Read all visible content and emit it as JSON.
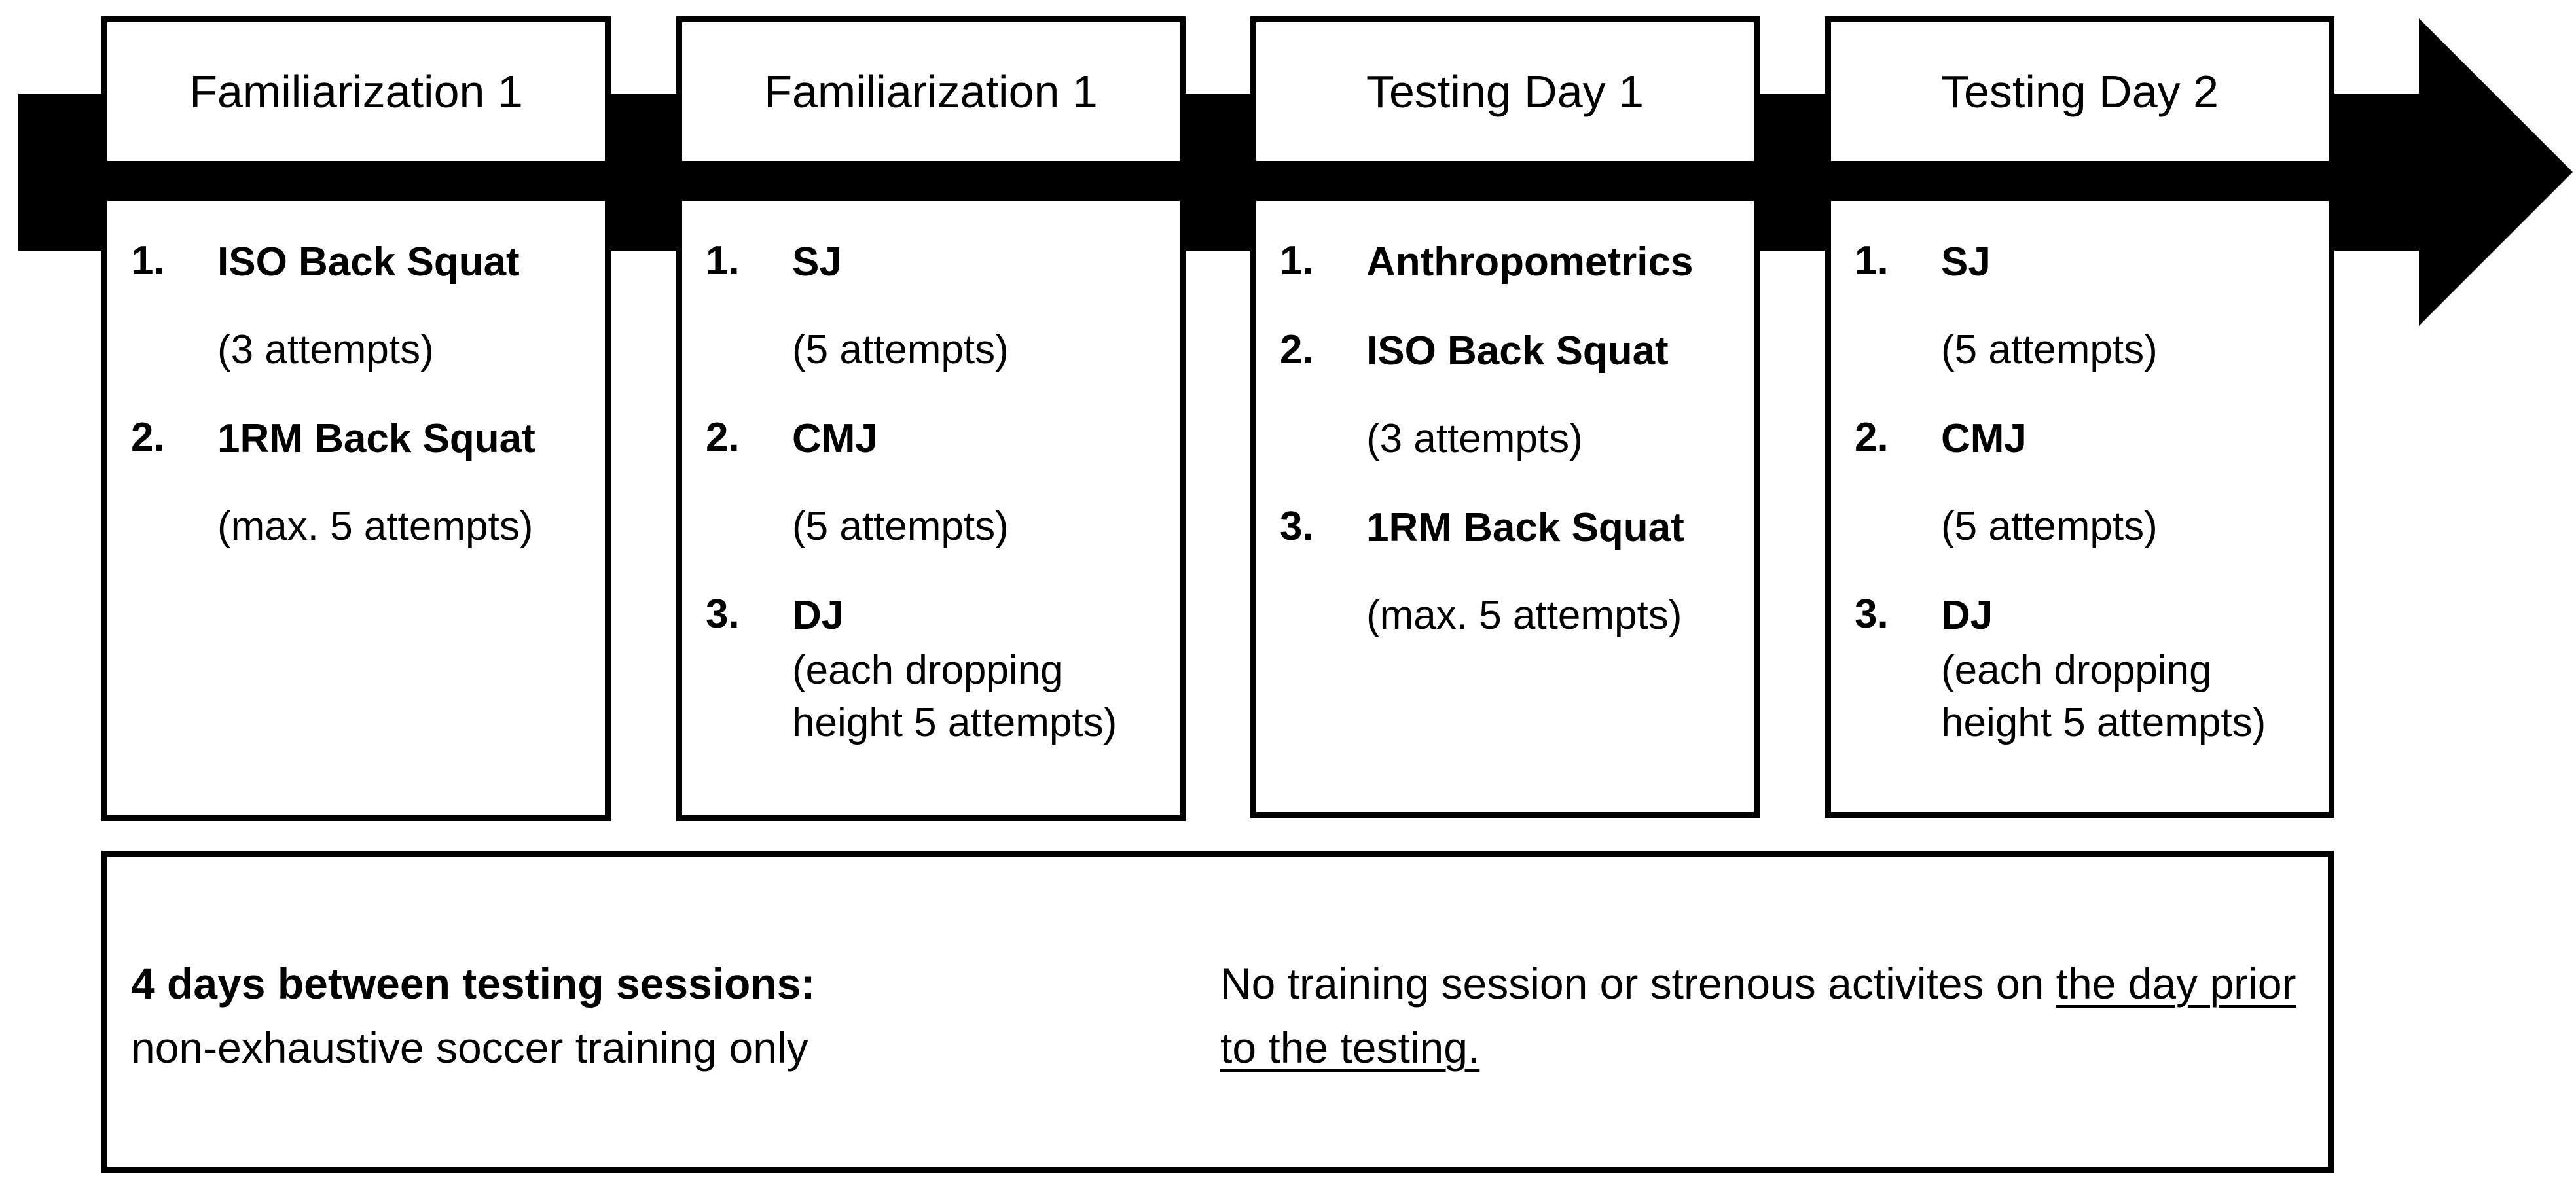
{
  "sessions": [
    {
      "title": "Familiarization 1",
      "steps": [
        {
          "num": "1.",
          "name": "ISO Back Squat",
          "detail": "(3 attempts)"
        },
        {
          "num": "2.",
          "name": "1RM Back Squat",
          "detail": "(max. 5 attempts)"
        }
      ]
    },
    {
      "title": "Familiarization 1",
      "steps": [
        {
          "num": "1.",
          "name": "SJ",
          "detail": "(5 attempts)"
        },
        {
          "num": "2.",
          "name": "CMJ",
          "detail": "(5 attempts)"
        },
        {
          "num": "3.",
          "name": "DJ",
          "detail": "(each dropping height 5 attempts)"
        }
      ]
    },
    {
      "title": "Testing Day 1",
      "steps": [
        {
          "num": "1.",
          "name": "Anthropometrics",
          "detail": ""
        },
        {
          "num": "2.",
          "name": "ISO Back Squat",
          "detail": "(3 attempts)"
        },
        {
          "num": "3.",
          "name": "1RM Back Squat",
          "detail": "(max. 5 attempts)"
        }
      ]
    },
    {
      "title": "Testing Day 2",
      "steps": [
        {
          "num": "1.",
          "name": "SJ",
          "detail": "(5 attempts)"
        },
        {
          "num": "2.",
          "name": "CMJ",
          "detail": "(5 attempts)"
        },
        {
          "num": "3.",
          "name": "DJ",
          "detail": "(each dropping height 5 attempts)"
        }
      ]
    }
  ],
  "notes": {
    "left_bold": "4 days between testing sessions:",
    "left_text": "non-exhaustive soccer training only",
    "right_text": "No training session or strenous activites on",
    "right_underlined": "the day prior to the testing."
  },
  "colors": {
    "arrow": "#000000",
    "box_border": "#000000",
    "box_fill": "#ffffff"
  }
}
